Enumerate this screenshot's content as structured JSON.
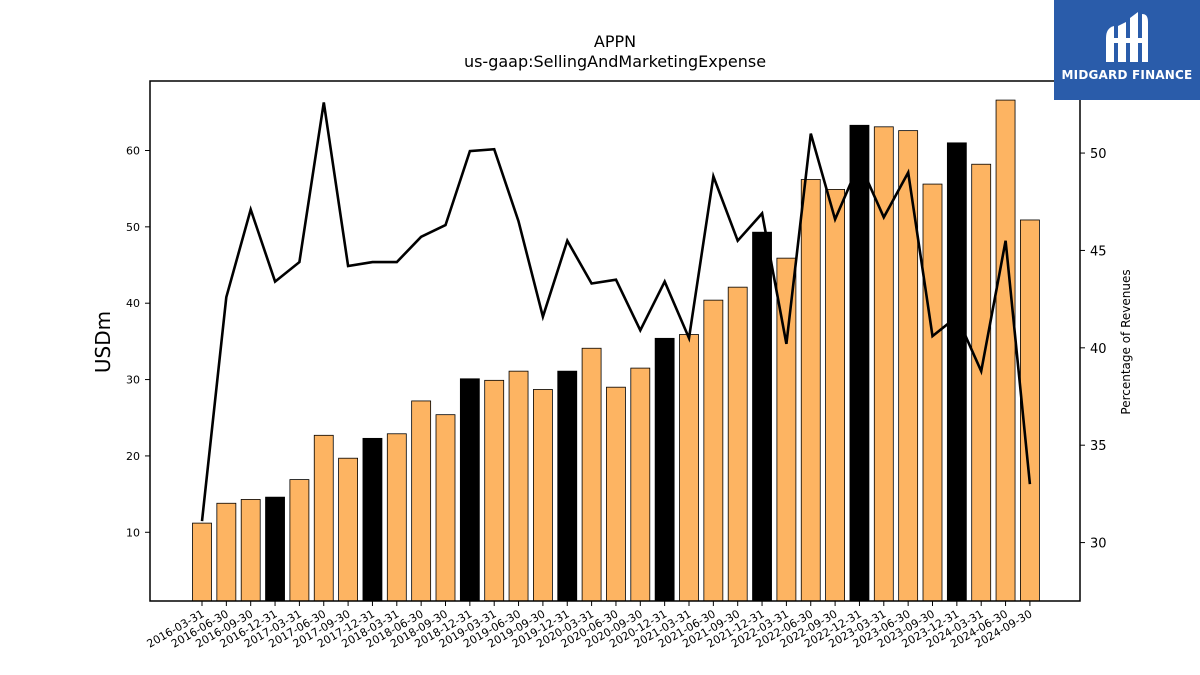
{
  "chart_data": {
    "type": "bar",
    "title": "APPN",
    "subtitle": "us-gaap:SellingAndMarketingExpense",
    "ylabel": "USDm",
    "y2label": "Percentage of Revenues",
    "ylim": [
      1,
      69.1
    ],
    "y2lim": [
      27.0,
      53.7
    ],
    "yticks": [
      10,
      20,
      30,
      40,
      50,
      60
    ],
    "y2ticks": [
      30,
      35,
      40,
      45,
      50
    ],
    "bar_color": "#fdb462",
    "highlight_color": "#000000",
    "line_color": "#000000",
    "categories": [
      "2016-03-31",
      "2016-06-30",
      "2016-09-30",
      "2016-12-31",
      "2017-03-31",
      "2017-06-30",
      "2017-09-30",
      "2017-12-31",
      "2018-03-31",
      "2018-06-30",
      "2018-09-30",
      "2018-12-31",
      "2019-03-31",
      "2019-06-30",
      "2019-09-30",
      "2019-12-31",
      "2020-03-31",
      "2020-06-30",
      "2020-09-30",
      "2020-12-31",
      "2021-03-31",
      "2021-06-30",
      "2021-09-30",
      "2021-12-31",
      "2022-03-31",
      "2022-06-30",
      "2022-09-30",
      "2022-12-31",
      "2023-03-31",
      "2023-06-30",
      "2023-09-30",
      "2023-12-31",
      "2024-03-31",
      "2024-06-30",
      "2024-09-30"
    ],
    "series": [
      {
        "type": "bar",
        "values": [
          11.2,
          13.8,
          14.3,
          14.6,
          16.9,
          22.7,
          19.7,
          22.3,
          22.9,
          27.2,
          25.4,
          30.1,
          29.9,
          31.1,
          28.7,
          31.1,
          34.1,
          29.0,
          31.5,
          35.4,
          35.9,
          40.4,
          42.1,
          49.3,
          45.9,
          56.2,
          54.9,
          63.3,
          63.1,
          62.6,
          55.6,
          61.0,
          58.2,
          66.6,
          50.9
        ],
        "highlight": [
          false,
          false,
          false,
          true,
          false,
          false,
          false,
          true,
          false,
          false,
          false,
          true,
          false,
          false,
          false,
          true,
          false,
          false,
          false,
          true,
          false,
          false,
          false,
          true,
          false,
          false,
          false,
          true,
          false,
          false,
          false,
          true,
          false,
          false,
          false
        ]
      },
      {
        "type": "line",
        "axis": "right",
        "values": [
          31.1,
          42.6,
          47.1,
          43.4,
          44.4,
          52.6,
          44.2,
          44.4,
          44.4,
          45.7,
          46.3,
          50.1,
          50.2,
          46.5,
          41.6,
          45.5,
          43.3,
          43.5,
          40.9,
          43.4,
          40.5,
          48.8,
          45.5,
          46.9,
          40.2,
          51.0,
          46.6,
          49.5,
          46.7,
          49.0,
          40.6,
          41.6,
          38.8,
          45.5,
          33.0
        ]
      }
    ]
  },
  "branding": {
    "name": "MIDGARD FINANCE",
    "logo_icon": "midgard-logo-icon",
    "background": "#2a5caa"
  }
}
